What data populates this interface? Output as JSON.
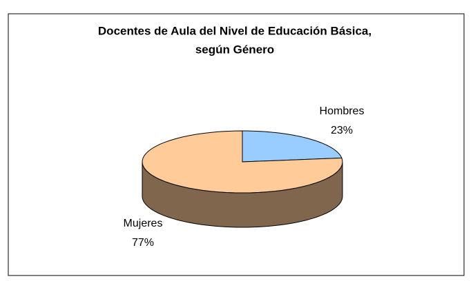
{
  "chart_data": {
    "type": "pie",
    "title": [
      "Docentes de Aula del Nivel de Educación Básica,",
      "según Género"
    ],
    "categories": [
      "Hombres",
      "Mujeres"
    ],
    "values": [
      23,
      77
    ],
    "value_labels": [
      "23%",
      "77%"
    ],
    "colors": [
      "#99ccff",
      "#ffcc99"
    ]
  }
}
